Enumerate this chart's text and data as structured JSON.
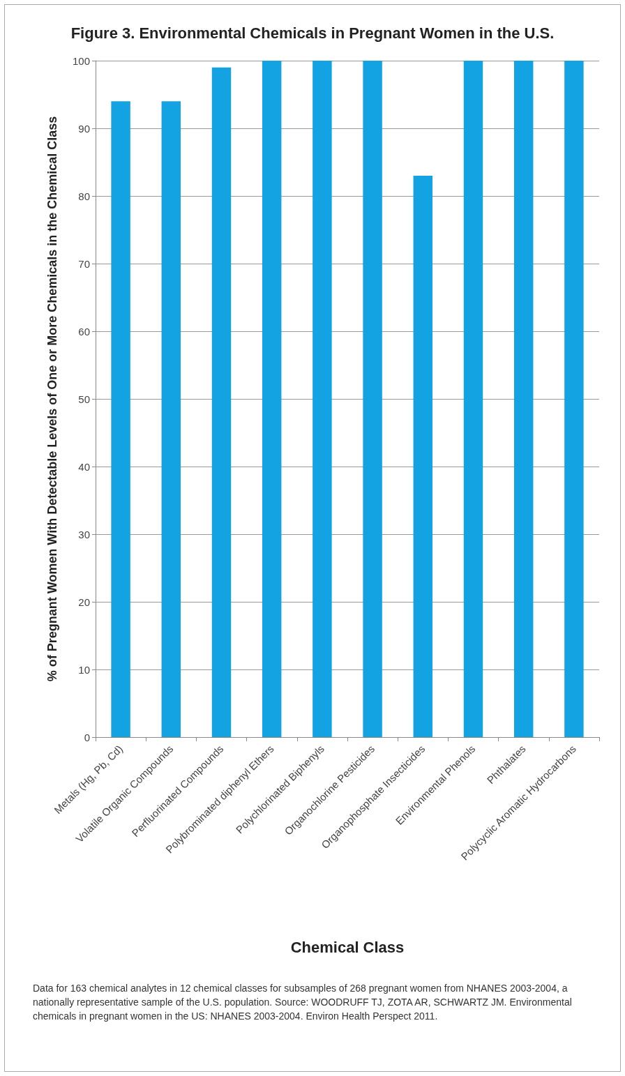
{
  "chart_data": {
    "type": "bar",
    "title": "Figure 3. Environmental Chemicals in Pregnant Women in the U.S.",
    "xlabel": "Chemical Class",
    "ylabel": "% of Pregnant Women With Detectable Levels of One or More Chemicals in the Chemical Class",
    "categories": [
      "Metals (Hg, Pb, Cd)",
      "Volatile Organic Compounds",
      "Perfluorinated Compounds",
      "Polybrominated diphenyl Ethers",
      "Polychlorinated Biphenyls",
      "Organochlorine Pesticides",
      "Organophosphate Insecticides",
      "Environmental Phenols",
      "Phthalates",
      "Polycyclic Aromatic Hydrocarbons"
    ],
    "values": [
      94,
      94,
      99,
      100,
      100,
      100,
      83,
      100,
      100,
      100
    ],
    "color": "#13a2e2",
    "ylim": [
      0,
      100
    ],
    "yticks": [
      0,
      10,
      20,
      30,
      40,
      50,
      60,
      70,
      80,
      90,
      100
    ],
    "grid": "y",
    "annotations": [
      "Data for 163 chemical analytes in 12 chemical classes for subsamples of 268 pregnant women from NHANES 2003-2004, a nationally representative sample of the U.S. population. Source: WOODRUFF TJ, ZOTA AR, SCHWARTZ JM. Environmental chemicals in pregnant women in the US: NHANES 2003-2004. Environ Health Perspect 2011."
    ]
  }
}
